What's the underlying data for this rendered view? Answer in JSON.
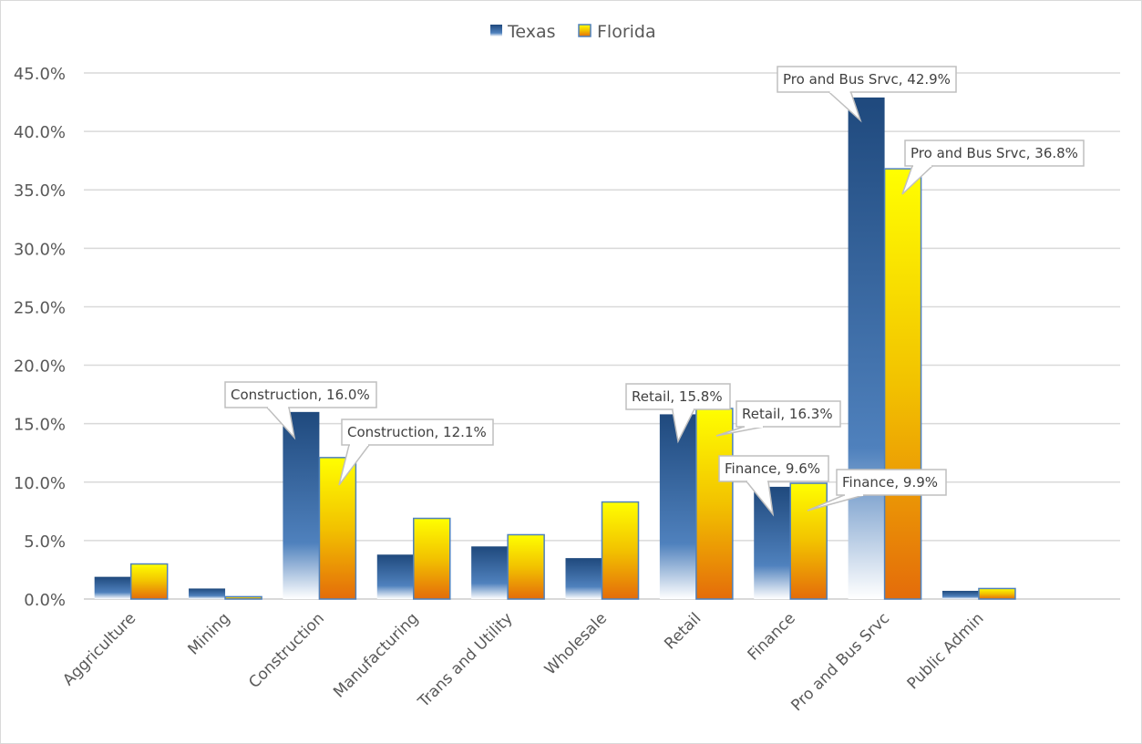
{
  "chart_data": {
    "type": "bar",
    "title": "",
    "xlabel": "",
    "ylabel": "",
    "ylim": [
      0,
      45
    ],
    "y_tick_step": 5,
    "y_tick_format": "percent_1dp",
    "grid": true,
    "legend_position": "top",
    "categories": [
      "Aggriculture",
      "Mining",
      "Construction",
      "Manufacturing",
      "Trans and Utility",
      "Wholesale",
      "Retail",
      "Finance",
      "Pro and Bus Srvc",
      "Public Admin",
      ""
    ],
    "series": [
      {
        "name": "Texas",
        "color_top": "#1f497d",
        "color_mid": "#4f81bd",
        "color_bottom": "#ffffff",
        "values": [
          1.9,
          0.9,
          16.0,
          3.8,
          4.5,
          3.5,
          15.8,
          9.6,
          42.9,
          0.7,
          null
        ]
      },
      {
        "name": "Florida",
        "color_top": "#ffff00",
        "color_mid": "#f2c200",
        "color_bottom": "#e46c0a",
        "border": "#4f81bd",
        "values": [
          3.0,
          0.2,
          12.1,
          6.9,
          5.5,
          8.3,
          16.3,
          9.9,
          36.8,
          0.9,
          null
        ]
      }
    ],
    "data_labels": [
      {
        "series": 0,
        "category": 2,
        "text": "Construction, 16.0%"
      },
      {
        "series": 1,
        "category": 2,
        "text": "Construction, 12.1%"
      },
      {
        "series": 0,
        "category": 6,
        "text": "Retail, 15.8%"
      },
      {
        "series": 1,
        "category": 6,
        "text": "Retail, 16.3%"
      },
      {
        "series": 0,
        "category": 7,
        "text": "Finance, 9.6%"
      },
      {
        "series": 1,
        "category": 7,
        "text": "Finance, 9.9%"
      },
      {
        "series": 0,
        "category": 8,
        "text": "Pro and Bus Srvc, 42.9%"
      },
      {
        "series": 1,
        "category": 8,
        "text": "Pro and Bus Srvc, 36.8%"
      }
    ]
  },
  "legend": {
    "items": [
      {
        "label": "Texas",
        "icon": "texas-swatch"
      },
      {
        "label": "Florida",
        "icon": "florida-swatch"
      }
    ]
  }
}
